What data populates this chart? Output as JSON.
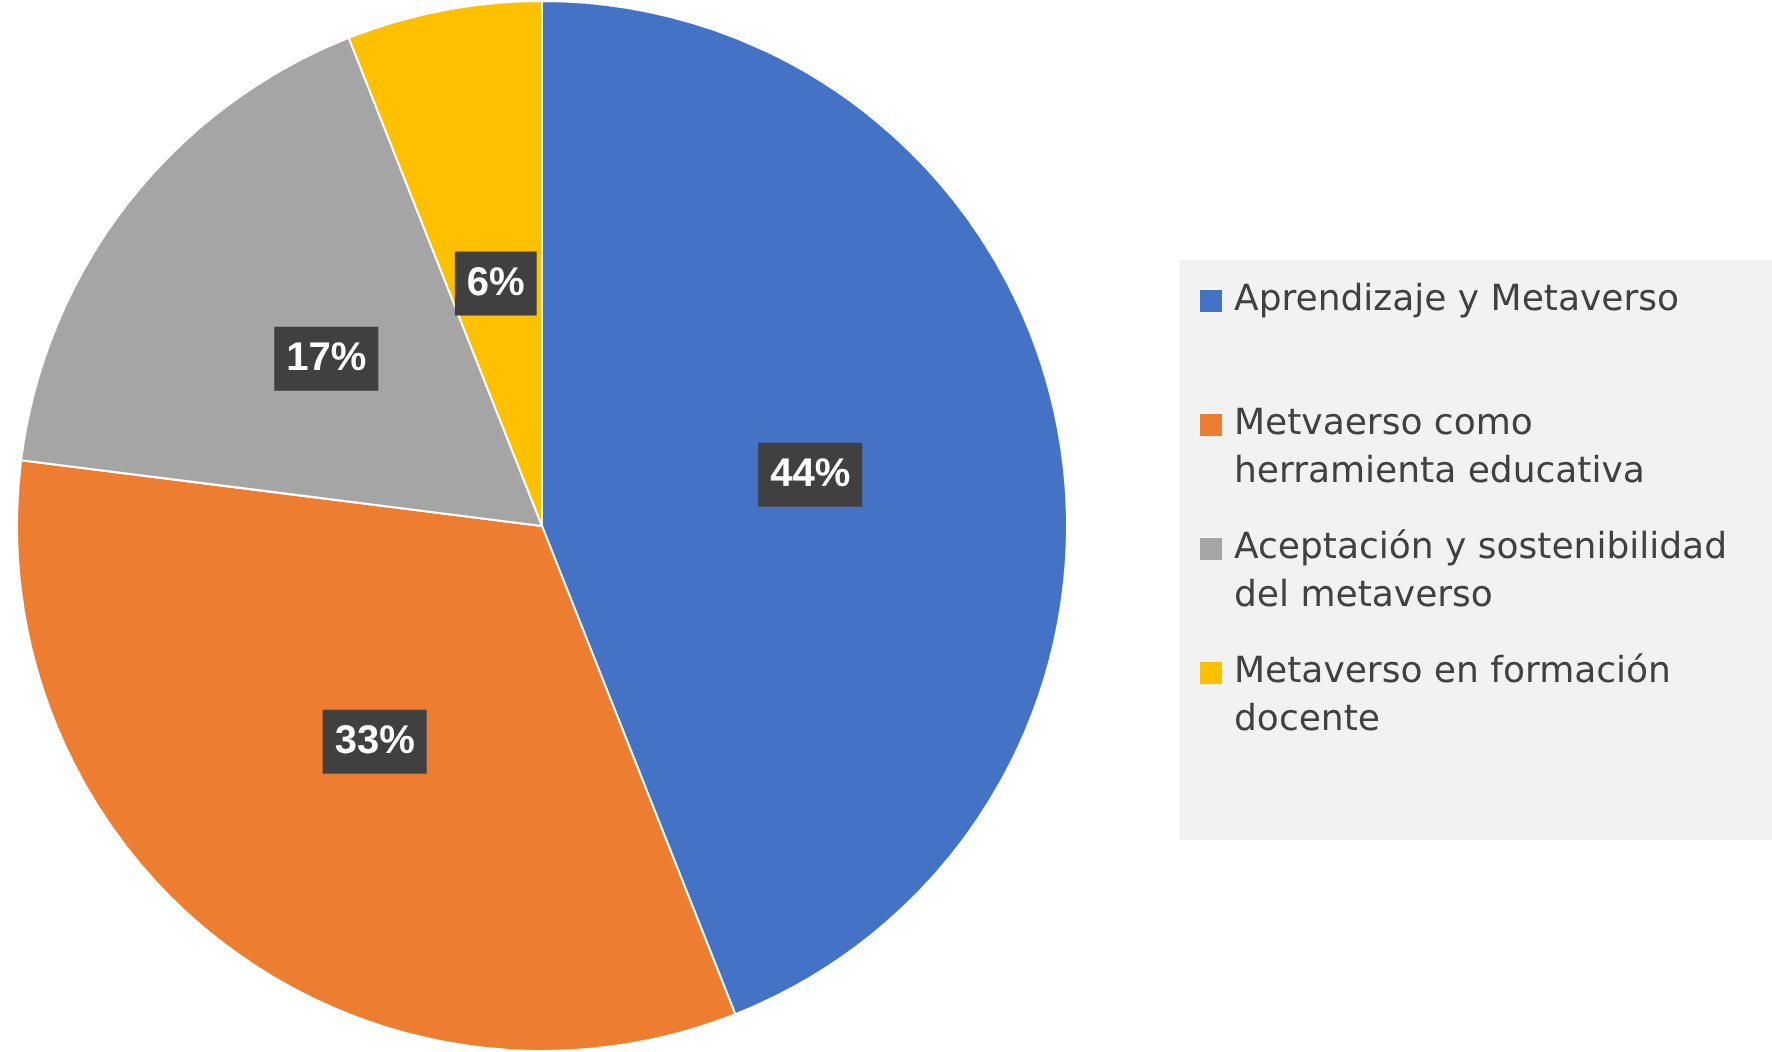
{
  "chart_data": {
    "type": "pie",
    "categories": [
      "Aprendizaje y Metaverso",
      "Metvaerso como herramienta educativa",
      "Aceptación y sostenibilidad del metaverso",
      "Metaverso en formación docente"
    ],
    "values": [
      44,
      33,
      17,
      6
    ],
    "value_labels": [
      "44%",
      "33%",
      "17%",
      "6%"
    ],
    "colors": [
      "#4472c4",
      "#ed7d31",
      "#a5a5a5",
      "#ffc000"
    ],
    "legend": "right"
  }
}
